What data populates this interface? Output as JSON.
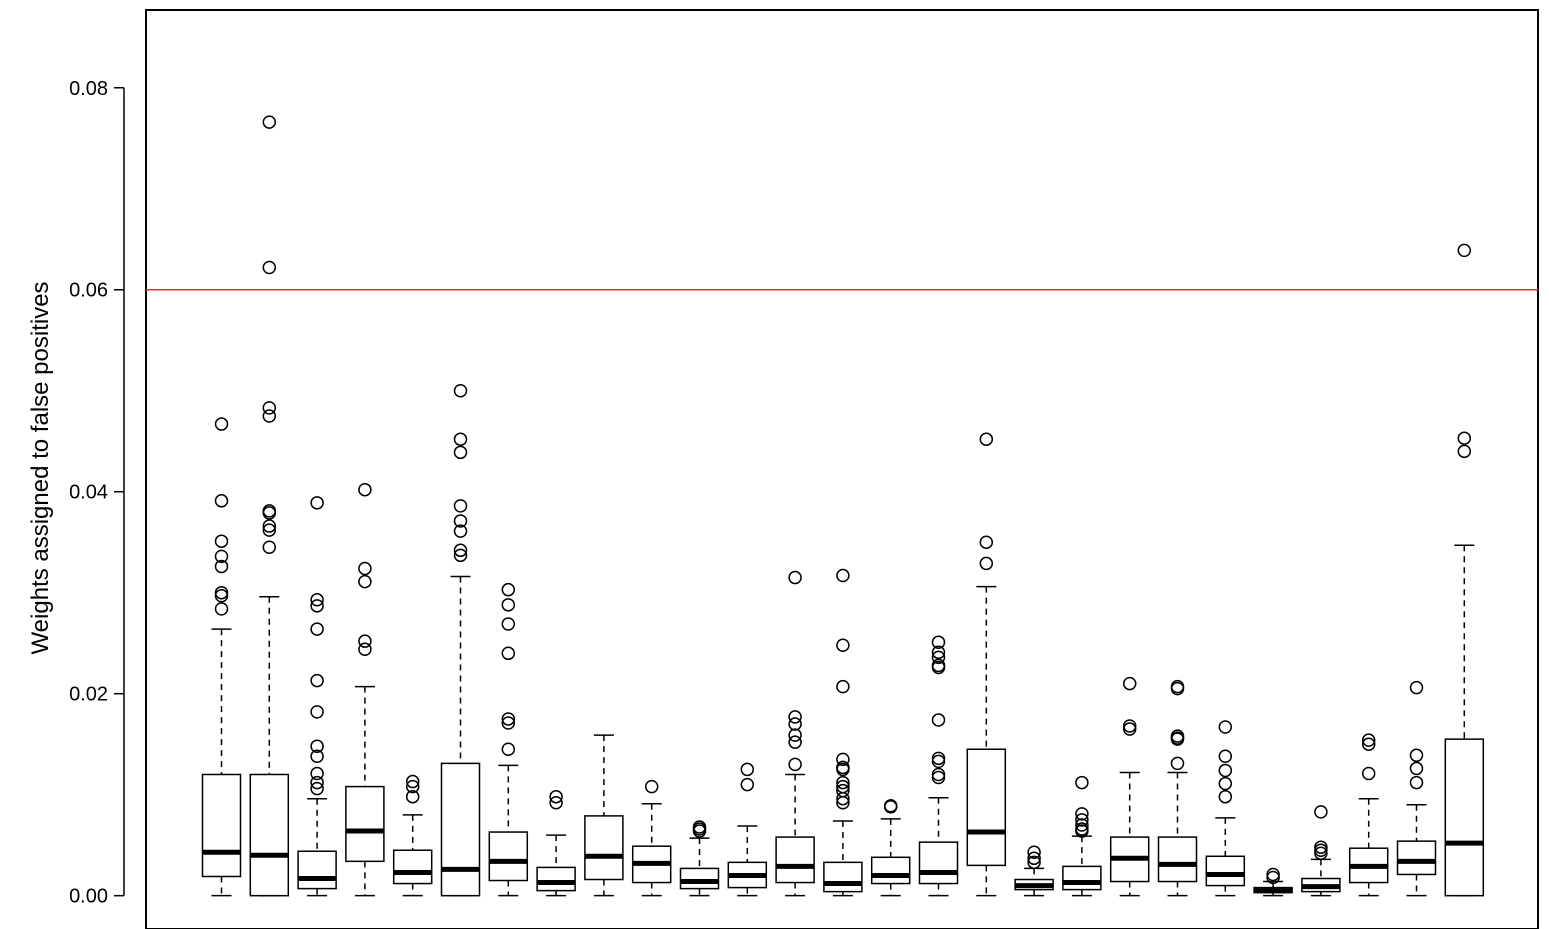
{
  "chart_data": {
    "type": "box",
    "title": "",
    "xlabel": "",
    "ylabel": "Weights assigned to false positives",
    "ylim": [
      -0.0033,
      0.0877
    ],
    "yticks": [
      0.0,
      0.02,
      0.04,
      0.06,
      0.08
    ],
    "ytick_labels": [
      "0.00",
      "0.02",
      "0.04",
      "0.06",
      "0.08"
    ],
    "reference_line": {
      "y": 0.06,
      "color": "#e0302a"
    },
    "grid": false,
    "legend": "none",
    "boxes": [
      {
        "whisker_low": 0.0,
        "q1": 0.0019,
        "median": 0.0043,
        "q3": 0.012,
        "whisker_high": 0.0264,
        "outliers": [
          0.0467,
          0.0391,
          0.0351,
          0.0336,
          0.0326,
          0.03,
          0.0297,
          0.0284
        ]
      },
      {
        "whisker_low": 0.0,
        "q1": 0.0,
        "median": 0.004,
        "q3": 0.012,
        "whisker_high": 0.0296,
        "outliers": [
          0.0766,
          0.0622,
          0.0483,
          0.0475,
          0.0381,
          0.0379,
          0.0366,
          0.0362,
          0.0345
        ]
      },
      {
        "whisker_low": 0.0,
        "q1": 0.0007,
        "median": 0.0017,
        "q3": 0.0044,
        "whisker_high": 0.0096,
        "outliers": [
          0.0389,
          0.0293,
          0.0287,
          0.0264,
          0.0213,
          0.0182,
          0.0148,
          0.0138,
          0.0121,
          0.0112,
          0.0106
        ]
      },
      {
        "whisker_low": 0.0,
        "q1": 0.0034,
        "median": 0.0064,
        "q3": 0.0108,
        "whisker_high": 0.0207,
        "outliers": [
          0.0402,
          0.0324,
          0.0311,
          0.0252,
          0.0244
        ]
      },
      {
        "whisker_low": 0.0,
        "q1": 0.0012,
        "median": 0.0023,
        "q3": 0.0045,
        "whisker_high": 0.008,
        "outliers": [
          0.0113,
          0.0108,
          0.0098
        ]
      },
      {
        "whisker_low": 0.0,
        "q1": 0.0,
        "median": 0.0026,
        "q3": 0.0131,
        "whisker_high": 0.0316,
        "outliers": [
          0.05,
          0.0452,
          0.0439,
          0.0386,
          0.0371,
          0.0361,
          0.0342,
          0.0337
        ]
      },
      {
        "whisker_low": 0.0,
        "q1": 0.0015,
        "median": 0.0034,
        "q3": 0.0063,
        "whisker_high": 0.0129,
        "outliers": [
          0.0303,
          0.0288,
          0.0269,
          0.024,
          0.0175,
          0.0171,
          0.0145
        ]
      },
      {
        "whisker_low": 0.0,
        "q1": 0.0005,
        "median": 0.0013,
        "q3": 0.0028,
        "whisker_high": 0.006,
        "outliers": [
          0.0098,
          0.0092
        ]
      },
      {
        "whisker_low": 0.0,
        "q1": 0.0016,
        "median": 0.0039,
        "q3": 0.0079,
        "whisker_high": 0.0159,
        "outliers": []
      },
      {
        "whisker_low": 0.0,
        "q1": 0.0013,
        "median": 0.0032,
        "q3": 0.0049,
        "whisker_high": 0.0091,
        "outliers": [
          0.0108
        ]
      },
      {
        "whisker_low": 0.0,
        "q1": 0.0007,
        "median": 0.0014,
        "q3": 0.0027,
        "whisker_high": 0.0057,
        "outliers": [
          0.0068,
          0.0066,
          0.0064
        ]
      },
      {
        "whisker_low": 0.0,
        "q1": 0.0008,
        "median": 0.002,
        "q3": 0.0033,
        "whisker_high": 0.0069,
        "outliers": [
          0.0125,
          0.011
        ]
      },
      {
        "whisker_low": 0.0,
        "q1": 0.0013,
        "median": 0.0029,
        "q3": 0.0058,
        "whisker_high": 0.012,
        "outliers": [
          0.0315,
          0.0177,
          0.017,
          0.0159,
          0.0152,
          0.013
        ]
      },
      {
        "whisker_low": 0.0,
        "q1": 0.0004,
        "median": 0.0012,
        "q3": 0.0033,
        "whisker_high": 0.0074,
        "outliers": [
          0.0317,
          0.0248,
          0.0207,
          0.0135,
          0.0127,
          0.0125,
          0.0112,
          0.0108,
          0.0104,
          0.0096,
          0.0092
        ]
      },
      {
        "whisker_low": 0.0,
        "q1": 0.0012,
        "median": 0.002,
        "q3": 0.0038,
        "whisker_high": 0.0076,
        "outliers": [
          0.0089,
          0.0088
        ]
      },
      {
        "whisker_low": 0.0,
        "q1": 0.0012,
        "median": 0.0023,
        "q3": 0.0053,
        "whisker_high": 0.0097,
        "outliers": [
          0.0251,
          0.0241,
          0.0236,
          0.0228,
          0.0226,
          0.0174,
          0.0136,
          0.0133,
          0.012,
          0.0117
        ]
      },
      {
        "whisker_low": 0.0,
        "q1": 0.003,
        "median": 0.0063,
        "q3": 0.0145,
        "whisker_high": 0.0306,
        "outliers": [
          0.0452,
          0.035,
          0.0329
        ]
      },
      {
        "whisker_low": 0.0,
        "q1": 0.0006,
        "median": 0.001,
        "q3": 0.0016,
        "whisker_high": 0.0027,
        "outliers": [
          0.0043,
          0.0037,
          0.0033
        ]
      },
      {
        "whisker_low": 0.0,
        "q1": 0.0006,
        "median": 0.0013,
        "q3": 0.0029,
        "whisker_high": 0.0059,
        "outliers": [
          0.0112,
          0.0081,
          0.0075,
          0.007,
          0.0066,
          0.0064
        ]
      },
      {
        "whisker_low": 0.0,
        "q1": 0.0014,
        "median": 0.0037,
        "q3": 0.0058,
        "whisker_high": 0.0122,
        "outliers": [
          0.021,
          0.0168,
          0.0165
        ]
      },
      {
        "whisker_low": 0.0,
        "q1": 0.0014,
        "median": 0.0031,
        "q3": 0.0058,
        "whisker_high": 0.0122,
        "outliers": [
          0.0207,
          0.0205,
          0.0158,
          0.0156,
          0.0155,
          0.0131
        ]
      },
      {
        "whisker_low": 0.0,
        "q1": 0.001,
        "median": 0.0021,
        "q3": 0.0039,
        "whisker_high": 0.0077,
        "outliers": [
          0.0167,
          0.0138,
          0.0124,
          0.0111,
          0.0098
        ]
      },
      {
        "whisker_low": 0.0,
        "q1": 0.0003,
        "median": 0.0005,
        "q3": 0.0008,
        "whisker_high": 0.0014,
        "outliers": [
          0.0021,
          0.0018
        ]
      },
      {
        "whisker_low": 0.0,
        "q1": 0.0004,
        "median": 0.0009,
        "q3": 0.0017,
        "whisker_high": 0.0036,
        "outliers": [
          0.0083,
          0.0048,
          0.0045,
          0.0042
        ]
      },
      {
        "whisker_low": 0.0,
        "q1": 0.0013,
        "median": 0.0029,
        "q3": 0.0047,
        "whisker_high": 0.0096,
        "outliers": [
          0.0154,
          0.015,
          0.0121
        ]
      },
      {
        "whisker_low": 0.0,
        "q1": 0.0021,
        "median": 0.0034,
        "q3": 0.0054,
        "whisker_high": 0.009,
        "outliers": [
          0.0206,
          0.0139,
          0.0126,
          0.0112
        ]
      },
      {
        "whisker_low": 0.0,
        "q1": 0.0,
        "median": 0.0052,
        "q3": 0.0155,
        "whisker_high": 0.0347,
        "outliers": [
          0.0639,
          0.0453,
          0.044
        ]
      }
    ]
  }
}
